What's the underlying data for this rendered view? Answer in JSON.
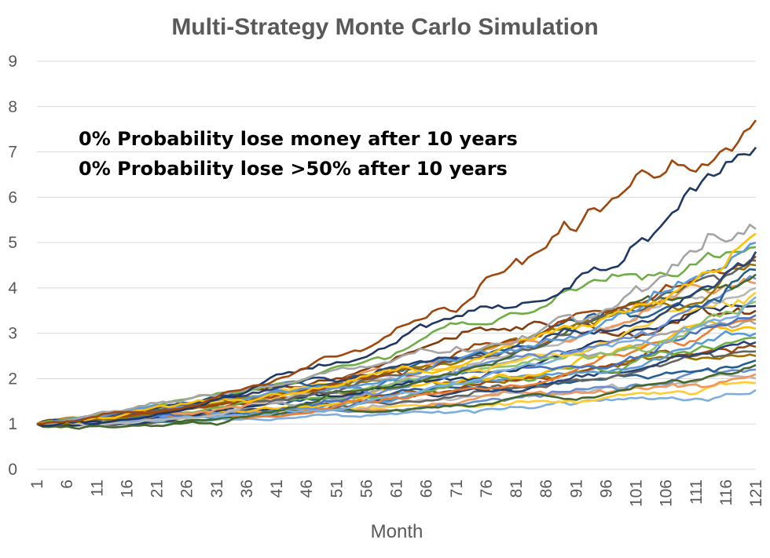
{
  "chart_data": {
    "type": "line",
    "title": "Multi-Strategy Monte Carlo Simulation",
    "xlabel": "Month",
    "ylabel": "",
    "ylim": [
      0,
      9
    ],
    "xlim": [
      1,
      121
    ],
    "yticks": [
      0,
      1,
      2,
      3,
      4,
      5,
      6,
      7,
      8,
      9
    ],
    "xticks": [
      1,
      6,
      11,
      16,
      21,
      26,
      31,
      36,
      41,
      46,
      51,
      56,
      61,
      66,
      71,
      76,
      81,
      86,
      91,
      96,
      101,
      106,
      111,
      116,
      121
    ],
    "grid": true,
    "legend": "none",
    "annotations": [
      "0% Probability lose money after 10 years",
      "0% Probability lose >50% after 10 years"
    ],
    "start_value": 1,
    "series_finals": [
      7.7,
      7.1,
      5.3,
      5.2,
      5.0,
      4.9,
      4.8,
      4.7,
      4.6,
      4.5,
      4.4,
      4.3,
      4.2,
      4.1,
      4.0,
      3.9,
      3.8,
      3.7,
      3.6,
      3.5,
      3.4,
      3.3,
      3.2,
      3.1,
      3.0,
      2.9,
      2.8,
      2.7,
      2.6,
      2.5,
      2.4,
      2.3,
      2.2,
      2.1,
      2.0,
      1.9,
      1.75
    ],
    "palette": [
      "#4472c4",
      "#ed7d31",
      "#a5a5a5",
      "#ffc000",
      "#5b9bd5",
      "#70ad47",
      "#264478",
      "#9e480e",
      "#636363",
      "#997300",
      "#255e91",
      "#43682b",
      "#698ed0",
      "#f1975a",
      "#b7b7b7",
      "#ffcd33",
      "#7cafdd",
      "#8cc168",
      "#1f3864",
      "#843c0c"
    ]
  }
}
